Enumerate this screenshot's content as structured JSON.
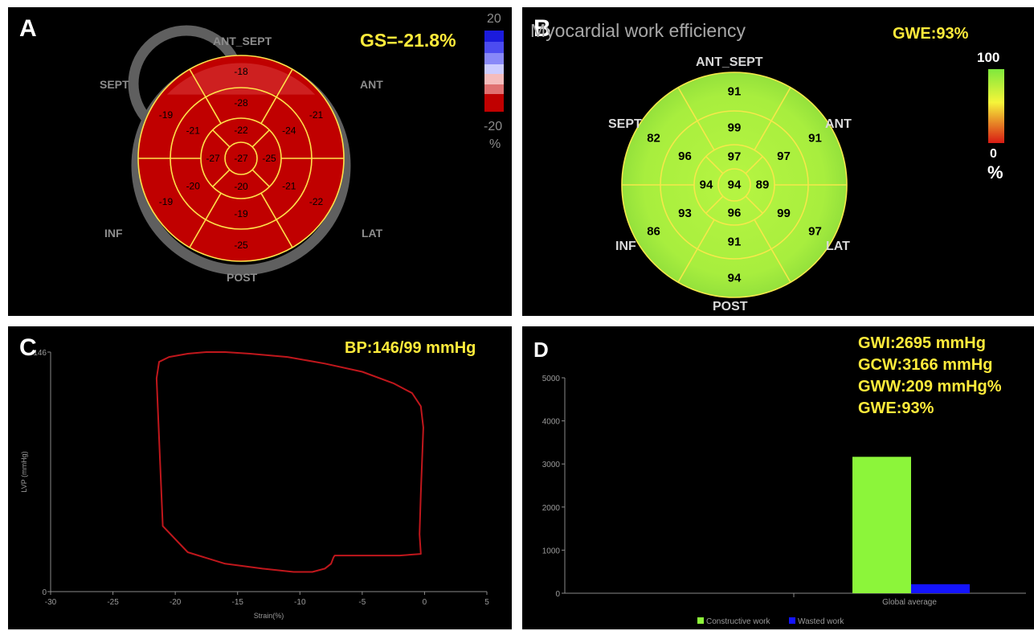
{
  "panelA": {
    "label": "A",
    "gs_text": "GS=-21.8%",
    "scale_max": "20",
    "scale_min": "-20",
    "scale_unit": "%",
    "walls": {
      "ant_sept": "ANT_SEPT",
      "ant": "ANT",
      "sept": "SEPT",
      "inf": "INF",
      "lat": "LAT",
      "post": "POST"
    },
    "fill_color": "#c00000",
    "line_color": "#ffe24a",
    "segments": {
      "basal": [
        "-18",
        "-21",
        "-22",
        "-25",
        "-19",
        "-19"
      ],
      "mid": [
        "-28",
        "-24",
        "-21",
        "-19",
        "-20",
        "-21"
      ],
      "apical": [
        "-22",
        "-25",
        "-20",
        "-27"
      ],
      "apex": "-27"
    }
  },
  "panelB": {
    "label": "B",
    "title": "Myocardial work efficiency",
    "gwe_text": "GWE:93%",
    "scale_max": "100",
    "scale_min": "0",
    "scale_unit": "%",
    "walls": {
      "ant_sept": "ANT_SEPT",
      "ant": "ANT",
      "sept": "SEPT",
      "inf": "INF",
      "lat": "LAT",
      "post": "POST"
    },
    "fill_color": "#b8f53a",
    "line_color": "#f5e84a",
    "segments": {
      "basal": [
        "91",
        "91",
        "97",
        "94",
        "86",
        "82"
      ],
      "mid": [
        "99",
        "97",
        "99",
        "91",
        "93",
        "96"
      ],
      "apical": [
        "97",
        "89",
        "96",
        "94"
      ],
      "apex": "94"
    }
  },
  "panelC": {
    "label": "C",
    "bp_text": "BP:146/99 mmHg",
    "chart_data": {
      "type": "line",
      "title": "",
      "xlabel": "Strain(%)",
      "ylabel": "LVP (mmHg)",
      "xlim": [
        -30,
        5
      ],
      "ylim": [
        0,
        146
      ],
      "x_ticks": [
        "-30",
        "-25",
        "-20",
        "-15",
        "-10",
        "-5",
        "0",
        "5"
      ],
      "y_ticks": [
        "0",
        "146"
      ],
      "line_color": "#c0171c",
      "series": [
        {
          "x": [
            -7.3,
            -7.2,
            -6,
            -4,
            -2,
            -0.3,
            -0.4,
            -0.3,
            -0.1,
            -0.3,
            -1,
            -2.5,
            -5,
            -8,
            -11,
            -14,
            -16,
            -17.5,
            -19,
            -20.5,
            -21.3,
            -21.5,
            -21,
            -19,
            -16,
            -13,
            -10.5,
            -9,
            -8,
            -7.5,
            -7.3
          ],
          "y": [
            21,
            22,
            22,
            22,
            22,
            23,
            35,
            60,
            100,
            113,
            121,
            127,
            134,
            139,
            143,
            145,
            146,
            146,
            145,
            143,
            140,
            130,
            40,
            24,
            17,
            14,
            12,
            12,
            14,
            17,
            21
          ]
        }
      ]
    }
  },
  "panelD": {
    "label": "D",
    "stats": [
      "GWI:2695 mmHg",
      "GCW:3166 mmHg",
      "GWW:209 mmHg%",
      "GWE:93%"
    ],
    "chart_data": {
      "type": "bar",
      "title": "",
      "categories": [
        "Global average"
      ],
      "ylim": [
        0,
        5000
      ],
      "y_ticks": [
        "0",
        "1000",
        "2000",
        "3000",
        "4000",
        "5000"
      ],
      "legend": "bottom",
      "series": [
        {
          "name": "Constructive work",
          "values": [
            3166
          ],
          "color": "#8cf53a"
        },
        {
          "name": "Wasted work",
          "values": [
            209
          ],
          "color": "#1414ff"
        }
      ]
    }
  }
}
